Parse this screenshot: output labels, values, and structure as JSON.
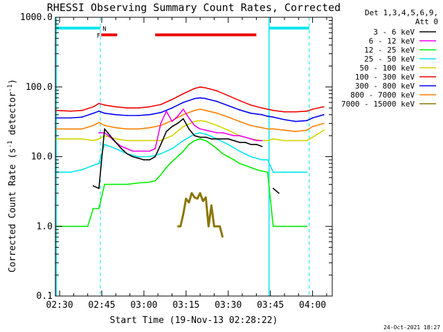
{
  "chart_data": {
    "type": "line",
    "title": "RHESSI Observing Summary Count Rates, Corrected",
    "xlabel": "Start Time (19-Nov-13 02:28:22)",
    "ylabel_main": "Corrected Count Rate (s",
    "ylabel_sup1": "-1",
    "ylabel_mid": " detector",
    "ylabel_sup2": "-1",
    "ylabel_end": ")",
    "yscale": "log",
    "ylim": [
      0.1,
      1000
    ],
    "xlim_minutes": [
      -1.5,
      97
    ],
    "x_ticks": [
      {
        "m": 0,
        "label": "02:30"
      },
      {
        "m": 15,
        "label": "02:45"
      },
      {
        "m": 30,
        "label": "03:00"
      },
      {
        "m": 45,
        "label": "03:15"
      },
      {
        "m": 60,
        "label": "03:30"
      },
      {
        "m": 75,
        "label": "03:45"
      },
      {
        "m": 90,
        "label": "04:00"
      }
    ],
    "y_ticks": [
      {
        "v": 1000,
        "label": "1000.0"
      },
      {
        "v": 100,
        "label": "100.0"
      },
      {
        "v": 10,
        "label": "10.0"
      },
      {
        "v": 1,
        "label": "1.0"
      },
      {
        "v": 0.1,
        "label": "0.1"
      }
    ],
    "legend_header": [
      "Det 1,3,4,5,6,9,",
      "Att 0"
    ],
    "legend_placement": "right",
    "attenuator_lines_minutes": [
      -1.2,
      74.5
    ],
    "dashed_lines_minutes": [
      14.5,
      88.8
    ],
    "flags": [
      {
        "label": "N",
        "x0": -1.2,
        "x1": 14.5,
        "y": 700,
        "color": "#00e5ee",
        "label_x": 15.3
      },
      {
        "label": "N",
        "x0": 74.5,
        "x1": 88.8,
        "y": 700,
        "color": "#00e5ee",
        "label_x": null
      },
      {
        "label": "F",
        "x0": 14.8,
        "x1": 20.5,
        "y": 560,
        "color": "#ee0000",
        "label_x": 13.2
      },
      {
        "label": "",
        "x0": 34.0,
        "x1": 70.0,
        "y": 560,
        "color": "#ee0000",
        "label_x": null
      }
    ],
    "series": [
      {
        "name": "3 - 6 keV",
        "color": "#000000",
        "x": [
          -1.2,
          10,
          12,
          14,
          16,
          18,
          20,
          22,
          24,
          26,
          28,
          30,
          32,
          34,
          36,
          38,
          40,
          42,
          44,
          46,
          48,
          50,
          52,
          54,
          56,
          58,
          60,
          62,
          64,
          66,
          68,
          70,
          72,
          74,
          76,
          78,
          80,
          82,
          84,
          86,
          88,
          90,
          92,
          94
        ],
        "y": [
          null,
          null,
          3.8,
          3.5,
          25,
          20,
          16,
          13,
          11,
          10,
          9.5,
          9,
          9,
          10,
          15,
          23,
          27,
          30,
          35,
          25,
          20,
          19,
          19,
          18,
          18,
          18,
          18,
          17,
          16,
          16,
          15,
          15,
          14,
          null,
          3.5,
          3,
          null,
          null,
          null,
          null,
          null,
          null,
          null,
          null
        ]
      },
      {
        "name": "6 - 12 keV",
        "color": "#ee00ee",
        "x": [
          14,
          16,
          18,
          20,
          22,
          24,
          26,
          28,
          30,
          32,
          34,
          36,
          38,
          40,
          42,
          44,
          46,
          48,
          50,
          52,
          54,
          56,
          58,
          60,
          62,
          64,
          66,
          68,
          70,
          72
        ],
        "y": [
          22,
          22,
          19,
          16,
          14,
          13,
          12,
          12,
          12,
          12,
          13,
          30,
          45,
          32,
          38,
          48,
          36,
          28,
          25,
          24,
          23,
          22,
          22,
          21,
          20,
          20,
          19,
          18,
          17,
          17
        ]
      },
      {
        "name": "12 - 25 keV",
        "color": "#00ee00",
        "x": [
          -1.2,
          8,
          10,
          12,
          14,
          16,
          20,
          24,
          28,
          32,
          34,
          36,
          38,
          40,
          42,
          44,
          46,
          48,
          50,
          52,
          54,
          56,
          58,
          60,
          62,
          64,
          66,
          68,
          70,
          72,
          74,
          76,
          78,
          80,
          82,
          84,
          86,
          88
        ],
        "y": [
          1.0,
          1.0,
          1.0,
          1.8,
          1.8,
          4,
          4,
          4,
          4.2,
          4.3,
          4.5,
          5.5,
          7,
          8.5,
          10,
          12,
          15,
          17,
          18,
          17,
          15,
          13,
          11,
          10,
          9,
          8,
          7.5,
          7,
          6.5,
          6.2,
          6,
          1.0,
          1.0,
          1.0,
          1.0,
          1.0,
          1.0,
          1.0
        ]
      },
      {
        "name": "25 - 50 keV",
        "color": "#00e5ee",
        "x": [
          -1.2,
          4,
          8,
          12,
          14,
          16,
          20,
          24,
          28,
          32,
          36,
          40,
          44,
          48,
          50,
          52,
          56,
          60,
          64,
          68,
          72,
          74,
          76,
          80,
          84,
          88
        ],
        "y": [
          6,
          6,
          6.5,
          7.5,
          8,
          15,
          13,
          11,
          10,
          10,
          11,
          13,
          17,
          21,
          22,
          21,
          18,
          15,
          12,
          10,
          9,
          9,
          6,
          6,
          6,
          6
        ]
      },
      {
        "name": "50 - 100 keV",
        "color": "#d4d400",
        "x": [
          -1.2,
          4,
          8,
          12,
          14,
          16,
          20,
          24,
          28,
          32,
          36,
          40,
          44,
          48,
          50,
          52,
          56,
          60,
          64,
          68,
          72,
          74,
          76,
          80,
          84,
          88,
          90,
          94
        ],
        "y": [
          18,
          18,
          18,
          17,
          18,
          20,
          18,
          17,
          17,
          17,
          17,
          20,
          27,
          32,
          33,
          32,
          28,
          24,
          20,
          18,
          17,
          17,
          18,
          17,
          17,
          17,
          19,
          24
        ]
      },
      {
        "name": "100 - 300 keV",
        "color": "#ee0000",
        "x": [
          -1.2,
          4,
          8,
          12,
          14,
          16,
          20,
          24,
          28,
          32,
          36,
          40,
          44,
          48,
          50,
          52,
          56,
          60,
          64,
          68,
          72,
          74,
          76,
          80,
          84,
          88,
          90,
          94
        ],
        "y": [
          46,
          45,
          46,
          52,
          58,
          55,
          52,
          50,
          50,
          52,
          56,
          66,
          80,
          95,
          100,
          97,
          88,
          75,
          64,
          55,
          50,
          48,
          46,
          44,
          44,
          45,
          48,
          52
        ]
      },
      {
        "name": "300 - 800 keV",
        "color": "#0000ee",
        "x": [
          -1.2,
          4,
          8,
          12,
          14,
          16,
          20,
          24,
          28,
          32,
          36,
          40,
          44,
          48,
          50,
          52,
          56,
          60,
          64,
          68,
          72,
          74,
          76,
          80,
          84,
          88,
          90,
          94
        ],
        "y": [
          36,
          36,
          37,
          42,
          45,
          42,
          40,
          39,
          39,
          40,
          43,
          50,
          60,
          68,
          70,
          68,
          62,
          54,
          47,
          42,
          40,
          38,
          37,
          34,
          32,
          33,
          36,
          40
        ]
      },
      {
        "name": "800 - 7000 keV",
        "color": "#ff7f00",
        "x": [
          -1.2,
          4,
          8,
          12,
          14,
          16,
          20,
          24,
          28,
          32,
          36,
          40,
          44,
          48,
          50,
          52,
          56,
          60,
          64,
          68,
          72,
          74,
          76,
          80,
          84,
          88,
          90,
          94
        ],
        "y": [
          25,
          25,
          25,
          28,
          31,
          28,
          26,
          25,
          25,
          26,
          28,
          33,
          40,
          46,
          48,
          46,
          42,
          37,
          32,
          28,
          26,
          25,
          25,
          24,
          23,
          24,
          27,
          30
        ]
      },
      {
        "name": "7000 - 15000 keV",
        "color": "#8b7500",
        "x": [
          42,
          43,
          44,
          45,
          46,
          47,
          48,
          49,
          50,
          51,
          52,
          53,
          54,
          55,
          56,
          57,
          58
        ],
        "y": [
          1.0,
          1.0,
          1.5,
          2.5,
          2.2,
          3.0,
          2.6,
          2.5,
          3.0,
          2.3,
          2.6,
          1.0,
          2.0,
          1.0,
          1.0,
          1.0,
          0.7
        ]
      }
    ],
    "footer_date": "24-Oct-2021 18:27"
  }
}
